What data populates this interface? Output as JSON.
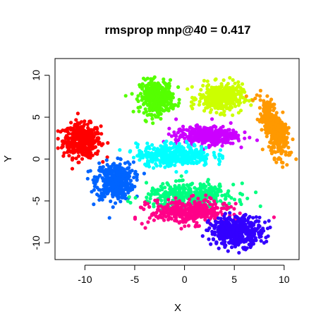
{
  "chart_data": {
    "type": "scatter",
    "title": "rmsprop mnp@40 = 0.417",
    "xlabel": "X",
    "ylabel": "Y",
    "xlim": [
      -13,
      11.5
    ],
    "ylim": [
      -12,
      12
    ],
    "xticks": [
      -10,
      -5,
      0,
      5,
      10
    ],
    "yticks": [
      -10,
      -5,
      0,
      5,
      10
    ],
    "grid": false,
    "legend": "none",
    "clusters": [
      {
        "color": "#ff0000",
        "center": [
          -10.3,
          2.2
        ],
        "spread": [
          1.7,
          1.8
        ],
        "count": 420
      },
      {
        "color": "#0064ff",
        "center": [
          -7.0,
          -2.6
        ],
        "spread": [
          1.7,
          2.0
        ],
        "count": 420
      },
      {
        "color": "#55ff00",
        "center": [
          -2.8,
          7.4
        ],
        "spread": [
          1.5,
          1.8
        ],
        "count": 380
      },
      {
        "color": "#ccff00",
        "center": [
          3.6,
          7.3
        ],
        "spread": [
          2.0,
          1.5
        ],
        "count": 360
      },
      {
        "color": "#ff9900",
        "center": [
          9.0,
          3.8
        ],
        "spread": [
          1.0,
          3.2
        ],
        "count": 380
      },
      {
        "color": "#cc00ff",
        "center": [
          2.2,
          2.8
        ],
        "spread": [
          2.8,
          1.0
        ],
        "count": 360
      },
      {
        "color": "#00ffff",
        "center": [
          -1.0,
          0.5
        ],
        "spread": [
          3.4,
          1.2
        ],
        "count": 380
      },
      {
        "color": "#00ff80",
        "center": [
          0.6,
          -4.4
        ],
        "spread": [
          4.0,
          1.3
        ],
        "count": 380
      },
      {
        "color": "#ff0088",
        "center": [
          0.5,
          -6.3
        ],
        "spread": [
          3.6,
          1.3
        ],
        "count": 400
      },
      {
        "color": "#3300ff",
        "center": [
          5.2,
          -8.6
        ],
        "spread": [
          2.4,
          1.6
        ],
        "count": 420
      }
    ]
  }
}
